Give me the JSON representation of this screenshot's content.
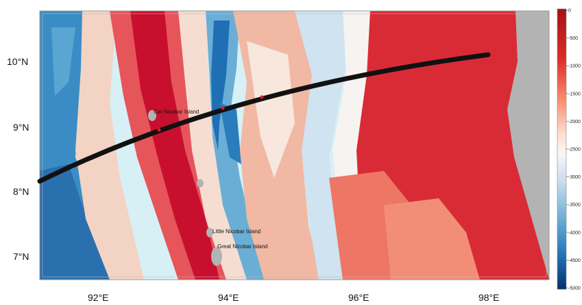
{
  "map": {
    "lat_labels": [
      "10°N",
      "9°N",
      "8°N",
      "7°N"
    ],
    "lon_labels": [
      "92°E",
      "94°E",
      "96°E",
      "98°E"
    ],
    "islands": [
      {
        "name": "Car Nicobar Island"
      },
      {
        "name": "Little Nicobar Island"
      },
      {
        "name": "Great Nicobar Island"
      }
    ]
  },
  "colorbar": {
    "ticks": [
      "0",
      "-500",
      "-1000",
      "-1500",
      "-2000",
      "-2500",
      "-3000",
      "-3500",
      "-4000",
      "-4500",
      "-5000"
    ],
    "color_top": "#c8102e",
    "color_mid": "#f5f5f5",
    "color_bottom": "#08306b"
  },
  "track": {
    "color": "#111111",
    "marker_color": "#e41a1c"
  },
  "colors": {
    "land": "#b3b3b3",
    "deep": "#2c7fb8",
    "shallow": "#d7191c"
  }
}
